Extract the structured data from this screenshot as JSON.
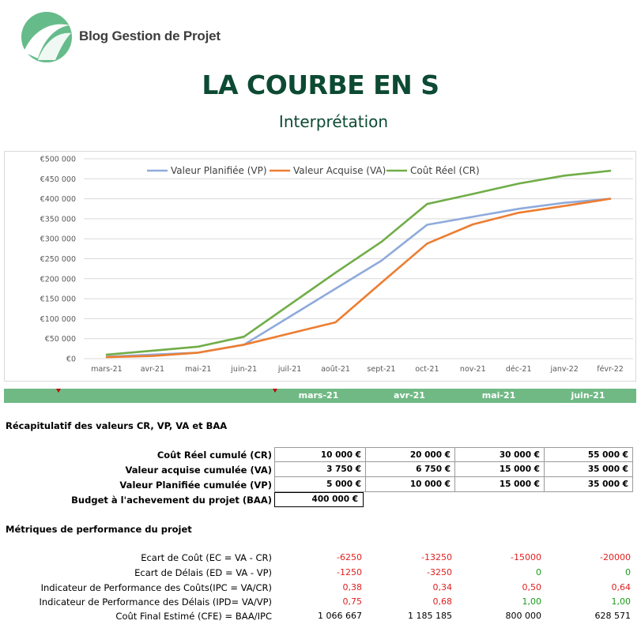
{
  "header": {
    "brand": "Blog Gestion de Projet",
    "title": "LA COURBE EN S",
    "subtitle": "Interprétation"
  },
  "chart_data": {
    "type": "line",
    "categories": [
      "mars-21",
      "avr-21",
      "mai-21",
      "juin-21",
      "juil-21",
      "août-21",
      "sept-21",
      "oct-21",
      "nov-21",
      "déc-21",
      "janv-22",
      "févr-22"
    ],
    "y_ticks": [
      "€0",
      "€50 000",
      "€100 000",
      "€150 000",
      "€200 000",
      "€250 000",
      "€300 000",
      "€350 000",
      "€400 000",
      "€450 000",
      "€500 000"
    ],
    "ylim": [
      0,
      500000
    ],
    "grid": true,
    "legend_position": "top",
    "series": [
      {
        "name": "Valeur Planifiée (VP)",
        "color": "#8faadc",
        "values": [
          5000,
          10000,
          15000,
          35000,
          105000,
          175000,
          245000,
          335000,
          355000,
          375000,
          390000,
          400000
        ]
      },
      {
        "name": "Valeur Acquise (VA)",
        "color": "#ed7d31",
        "values": [
          3750,
          6750,
          15000,
          35000,
          63000,
          91000,
          190000,
          288000,
          336000,
          365000,
          382000,
          400000
        ]
      },
      {
        "name": "Coût Réel (CR)",
        "color": "#70ad47",
        "values": [
          10000,
          20000,
          30000,
          55000,
          135000,
          215000,
          292000,
          387000,
          412000,
          438000,
          458000,
          470000
        ]
      }
    ]
  },
  "band": {
    "months": [
      "mars-21",
      "avr-21",
      "mai-21",
      "juin-21"
    ]
  },
  "recap": {
    "heading": "Récapitulatif des valeurs CR, VP, VA et BAA",
    "rows": [
      {
        "label": "Coût Réel cumulé  (CR)",
        "values": [
          "10 000 €",
          "20 000 €",
          "30 000 €",
          "55 000 €"
        ]
      },
      {
        "label": "Valeur acquise cumulée (VA)",
        "values": [
          "3 750 €",
          "6 750 €",
          "15 000 €",
          "35 000 €"
        ]
      },
      {
        "label": "Valeur Planifiée cumulée (VP)",
        "values": [
          "5 000 €",
          "10 000 €",
          "15 000 €",
          "35 000 €"
        ]
      }
    ],
    "baa_label": "Budget à l'achevement du projet (BAA)",
    "baa_value": "400 000 €"
  },
  "metrics": {
    "heading": "Métriques de performance du projet",
    "rows": [
      {
        "label": "Ecart de Coût (EC = VA - CR)",
        "values": [
          "-6250",
          "-13250",
          "-15000",
          "-20000"
        ],
        "colors": [
          "red",
          "red",
          "red",
          "red"
        ]
      },
      {
        "label": "Ecart de Délais (ED = VA - VP)",
        "values": [
          "-1250",
          "-3250",
          "0",
          "0"
        ],
        "colors": [
          "red",
          "red",
          "green",
          "green"
        ]
      },
      {
        "label": "Indicateur de Performance des Coûts(IPC = VA/CR)",
        "values": [
          "0,38",
          "0,34",
          "0,50",
          "0,64"
        ],
        "colors": [
          "red",
          "red",
          "red",
          "red"
        ]
      },
      {
        "label": "Indicateur de Performance des Délais (IPD= VA/VP)",
        "values": [
          "0,75",
          "0,68",
          "1,00",
          "1,00"
        ],
        "colors": [
          "red",
          "red",
          "green",
          "green"
        ]
      },
      {
        "label": "Coût Final Estimé (CFE) = BAA/IPC",
        "values": [
          "1 066 667",
          "1 185 185",
          "800 000",
          "628 571"
        ],
        "colors": [
          "black",
          "black",
          "black",
          "black"
        ]
      }
    ]
  },
  "colors": {
    "title_green": "#0d4a33",
    "band_green": "#70b985",
    "negative": "#e02020",
    "positive": "#1a9b1a"
  }
}
